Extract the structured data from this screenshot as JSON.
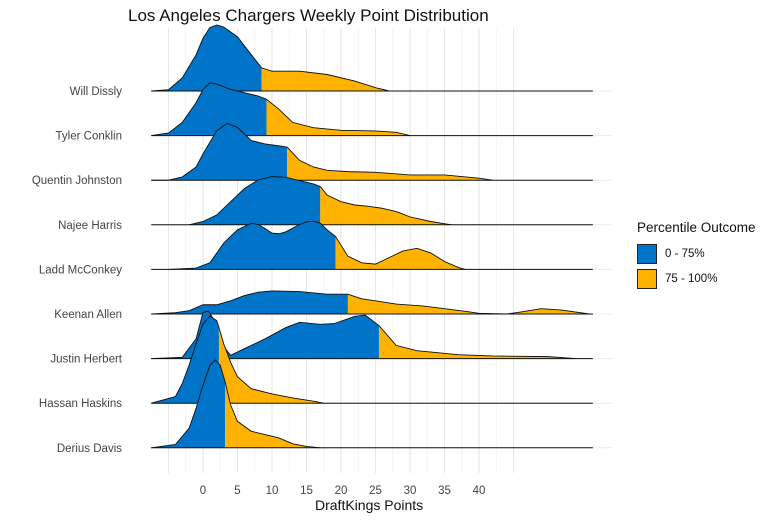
{
  "chart_data": {
    "type": "area",
    "title": "Los Angeles Chargers Weekly Point Distribution",
    "xlabel": "DraftKings Points",
    "ylabel": "",
    "x_ticks": [
      0,
      5,
      10,
      15,
      20,
      25,
      30,
      35,
      40
    ],
    "x_range": [
      -7.5,
      56.5
    ],
    "grid": true,
    "legend": {
      "title": "Percentile Outcome",
      "placement": "right",
      "entries": [
        {
          "label": "0 - 75%",
          "color": "#0074C8"
        },
        {
          "label": "75 - 100%",
          "color": "#FFB300"
        }
      ]
    },
    "series": [
      {
        "name": "Will Dissly",
        "cutoff": 8.5,
        "min": -7.5,
        "max": 27,
        "density": [
          [
            -7.5,
            0
          ],
          [
            -5,
            0.02
          ],
          [
            -3,
            0.2
          ],
          [
            -1,
            0.55
          ],
          [
            0,
            0.8
          ],
          [
            1,
            0.96
          ],
          [
            2,
            1.0
          ],
          [
            3,
            0.97
          ],
          [
            5,
            0.82
          ],
          [
            7,
            0.55
          ],
          [
            8.5,
            0.35
          ],
          [
            10,
            0.3
          ],
          [
            14,
            0.3
          ],
          [
            18,
            0.25
          ],
          [
            22,
            0.15
          ],
          [
            25,
            0.05
          ],
          [
            27,
            0
          ]
        ]
      },
      {
        "name": "Tyler Conklin",
        "cutoff": 9.2,
        "min": -7.5,
        "max": 30,
        "density": [
          [
            -7.5,
            0
          ],
          [
            -5,
            0.04
          ],
          [
            -3,
            0.2
          ],
          [
            -1,
            0.5
          ],
          [
            0,
            0.7
          ],
          [
            1,
            0.8
          ],
          [
            2,
            0.78
          ],
          [
            4,
            0.7
          ],
          [
            6,
            0.65
          ],
          [
            8,
            0.6
          ],
          [
            9.2,
            0.55
          ],
          [
            11,
            0.4
          ],
          [
            13,
            0.2
          ],
          [
            16,
            0.12
          ],
          [
            20,
            0.08
          ],
          [
            25,
            0.07
          ],
          [
            28,
            0.05
          ],
          [
            30,
            0
          ]
        ]
      },
      {
        "name": "Quentin Johnston",
        "cutoff": 12.2,
        "min": -7.5,
        "max": 42,
        "density": [
          [
            -7.5,
            0
          ],
          [
            -5,
            0
          ],
          [
            -3,
            0.05
          ],
          [
            -1,
            0.2
          ],
          [
            0,
            0.4
          ],
          [
            2,
            0.75
          ],
          [
            3.5,
            0.86
          ],
          [
            5,
            0.8
          ],
          [
            7,
            0.6
          ],
          [
            9,
            0.55
          ],
          [
            11,
            0.52
          ],
          [
            12.2,
            0.5
          ],
          [
            14,
            0.3
          ],
          [
            16,
            0.2
          ],
          [
            18,
            0.15
          ],
          [
            21,
            0.13
          ],
          [
            25,
            0.12
          ],
          [
            30,
            0.08
          ],
          [
            35,
            0.08
          ],
          [
            40,
            0.03
          ],
          [
            42,
            0
          ]
        ]
      },
      {
        "name": "Najee Harris",
        "cutoff": 17,
        "min": -2,
        "max": 36,
        "density": [
          [
            -2,
            0
          ],
          [
            0,
            0.05
          ],
          [
            2,
            0.15
          ],
          [
            4,
            0.35
          ],
          [
            6,
            0.55
          ],
          [
            8,
            0.68
          ],
          [
            10,
            0.73
          ],
          [
            12,
            0.72
          ],
          [
            14,
            0.67
          ],
          [
            16,
            0.62
          ],
          [
            17,
            0.58
          ],
          [
            18,
            0.45
          ],
          [
            20,
            0.35
          ],
          [
            22,
            0.3
          ],
          [
            24,
            0.28
          ],
          [
            26,
            0.25
          ],
          [
            28,
            0.2
          ],
          [
            30,
            0.12
          ],
          [
            33,
            0.05
          ],
          [
            36,
            0
          ]
        ]
      },
      {
        "name": "Ladd McConkey",
        "cutoff": 19.2,
        "min": -5,
        "max": 38,
        "density": [
          [
            -5,
            0
          ],
          [
            -1,
            0.02
          ],
          [
            1,
            0.1
          ],
          [
            3,
            0.4
          ],
          [
            5,
            0.6
          ],
          [
            6,
            0.65
          ],
          [
            7,
            0.7
          ],
          [
            8,
            0.68
          ],
          [
            9,
            0.62
          ],
          [
            10,
            0.55
          ],
          [
            11,
            0.54
          ],
          [
            12,
            0.57
          ],
          [
            14,
            0.68
          ],
          [
            15,
            0.72
          ],
          [
            16,
            0.73
          ],
          [
            17,
            0.7
          ],
          [
            18,
            0.6
          ],
          [
            19.2,
            0.5
          ],
          [
            21,
            0.2
          ],
          [
            23,
            0.1
          ],
          [
            25,
            0.08
          ],
          [
            27,
            0.18
          ],
          [
            29,
            0.28
          ],
          [
            31,
            0.32
          ],
          [
            33,
            0.25
          ],
          [
            35,
            0.12
          ],
          [
            37,
            0.03
          ],
          [
            38,
            0
          ]
        ]
      },
      {
        "name": "Keenan Allen",
        "cutoff": 21,
        "min": -7.5,
        "max": 56.5,
        "density": [
          [
            -7.5,
            0
          ],
          [
            -4,
            0.02
          ],
          [
            -2,
            0.05
          ],
          [
            0,
            0.14
          ],
          [
            2,
            0.14
          ],
          [
            4,
            0.2
          ],
          [
            6,
            0.28
          ],
          [
            8,
            0.33
          ],
          [
            10,
            0.35
          ],
          [
            14,
            0.34
          ],
          [
            18,
            0.3
          ],
          [
            21,
            0.3
          ],
          [
            23,
            0.23
          ],
          [
            25,
            0.2
          ],
          [
            28,
            0.15
          ],
          [
            32,
            0.12
          ],
          [
            35,
            0.08
          ],
          [
            38,
            0.04
          ],
          [
            40,
            0.01
          ],
          [
            44,
            0
          ],
          [
            46,
            0.03
          ],
          [
            49,
            0.08
          ],
          [
            52,
            0.06
          ],
          [
            56,
            0
          ],
          [
            56.5,
            0
          ]
        ]
      },
      {
        "name": "Justin Herbert",
        "cutoff": 25.5,
        "min": -7.5,
        "max": 54,
        "density": [
          [
            -7.5,
            0
          ],
          [
            -3,
            0.02
          ],
          [
            -1,
            0.3
          ],
          [
            0,
            0.7
          ],
          [
            0.8,
            0.72
          ],
          [
            1.5,
            0.6
          ],
          [
            2.5,
            0.25
          ],
          [
            4,
            0.05
          ],
          [
            6,
            0.15
          ],
          [
            9,
            0.3
          ],
          [
            12,
            0.47
          ],
          [
            14,
            0.55
          ],
          [
            17,
            0.52
          ],
          [
            19,
            0.53
          ],
          [
            22,
            0.64
          ],
          [
            23.5,
            0.66
          ],
          [
            25.5,
            0.5
          ],
          [
            28,
            0.2
          ],
          [
            31,
            0.12
          ],
          [
            34,
            0.09
          ],
          [
            37,
            0.06
          ],
          [
            42,
            0.04
          ],
          [
            50,
            0.03
          ],
          [
            54,
            0
          ]
        ]
      },
      {
        "name": "Hassan Haskins",
        "cutoff": 2.3,
        "min": -7.5,
        "max": 17.5,
        "density": [
          [
            -7.5,
            0
          ],
          [
            -4,
            0.1
          ],
          [
            -3,
            0.3
          ],
          [
            -2,
            0.58
          ],
          [
            -1,
            0.9
          ],
          [
            0,
            1.2
          ],
          [
            1,
            1.32
          ],
          [
            2,
            1.25
          ],
          [
            2.3,
            1.15
          ],
          [
            3,
            0.9
          ],
          [
            4,
            0.62
          ],
          [
            5,
            0.4
          ],
          [
            7,
            0.22
          ],
          [
            10,
            0.14
          ],
          [
            13,
            0.08
          ],
          [
            16,
            0.03
          ],
          [
            17.5,
            0
          ]
        ]
      },
      {
        "name": "Derius Davis",
        "cutoff": 3.2,
        "min": -7.5,
        "max": 17,
        "density": [
          [
            -7.5,
            0
          ],
          [
            -4,
            0.05
          ],
          [
            -2,
            0.3
          ],
          [
            -1,
            0.6
          ],
          [
            0,
            0.95
          ],
          [
            1,
            1.25
          ],
          [
            1.8,
            1.33
          ],
          [
            2.5,
            1.25
          ],
          [
            3.2,
            1.0
          ],
          [
            4,
            0.65
          ],
          [
            5,
            0.4
          ],
          [
            7,
            0.25
          ],
          [
            9,
            0.2
          ],
          [
            11,
            0.15
          ],
          [
            13,
            0.06
          ],
          [
            15,
            0.02
          ],
          [
            17,
            0
          ]
        ]
      }
    ]
  }
}
